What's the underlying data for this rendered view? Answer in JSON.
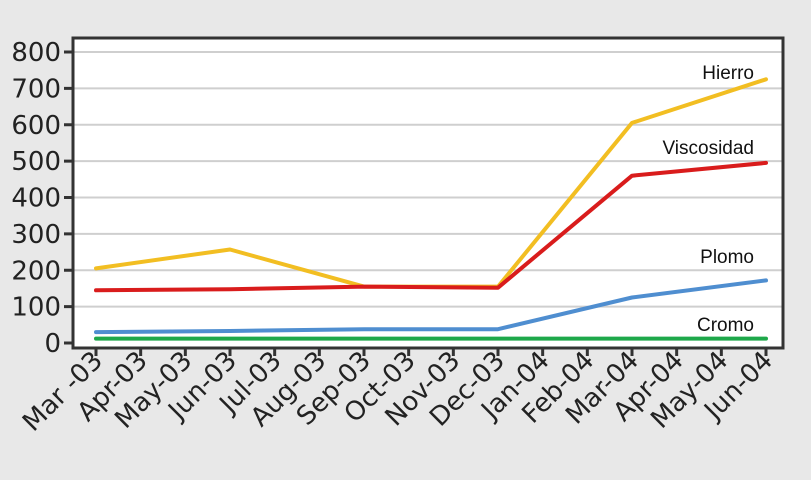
{
  "chart_data": {
    "type": "line",
    "title": "",
    "xlabel": "",
    "ylabel": "",
    "categories": [
      "Mar -03",
      "Apr-03",
      "May-03",
      "Jun-03",
      "Jul-03",
      "Aug-03",
      "Sep-03",
      "Oct-03",
      "Nov-03",
      "Dec-03",
      "Jan-04",
      "Feb-04",
      "Mar-04",
      "Apr-04",
      "May-04",
      "Jun-04"
    ],
    "ylim": [
      0,
      800
    ],
    "yticks": [
      "0",
      "100",
      "200",
      "300",
      "400",
      "500",
      "600",
      "700",
      "800"
    ],
    "grid": true,
    "legend": "none",
    "series": [
      {
        "name": "Hierro",
        "color": "#f2be22",
        "points": [
          [
            0,
            205
          ],
          [
            3,
            257
          ],
          [
            6,
            155
          ],
          [
            9,
            155
          ],
          [
            12,
            605
          ],
          [
            15,
            725
          ]
        ]
      },
      {
        "name": "Viscosidad",
        "color": "#d91c1c",
        "points": [
          [
            0,
            145
          ],
          [
            3,
            148
          ],
          [
            6,
            155
          ],
          [
            9,
            152
          ],
          [
            12,
            460
          ],
          [
            15,
            495
          ]
        ]
      },
      {
        "name": "Plomo",
        "color": "#4f8ed0",
        "points": [
          [
            0,
            30
          ],
          [
            3,
            33
          ],
          [
            6,
            38
          ],
          [
            9,
            38
          ],
          [
            12,
            125
          ],
          [
            15,
            172
          ]
        ]
      },
      {
        "name": "Cromo",
        "color": "#1ea84a",
        "points": [
          [
            0,
            12
          ],
          [
            15,
            12
          ]
        ]
      }
    ]
  }
}
